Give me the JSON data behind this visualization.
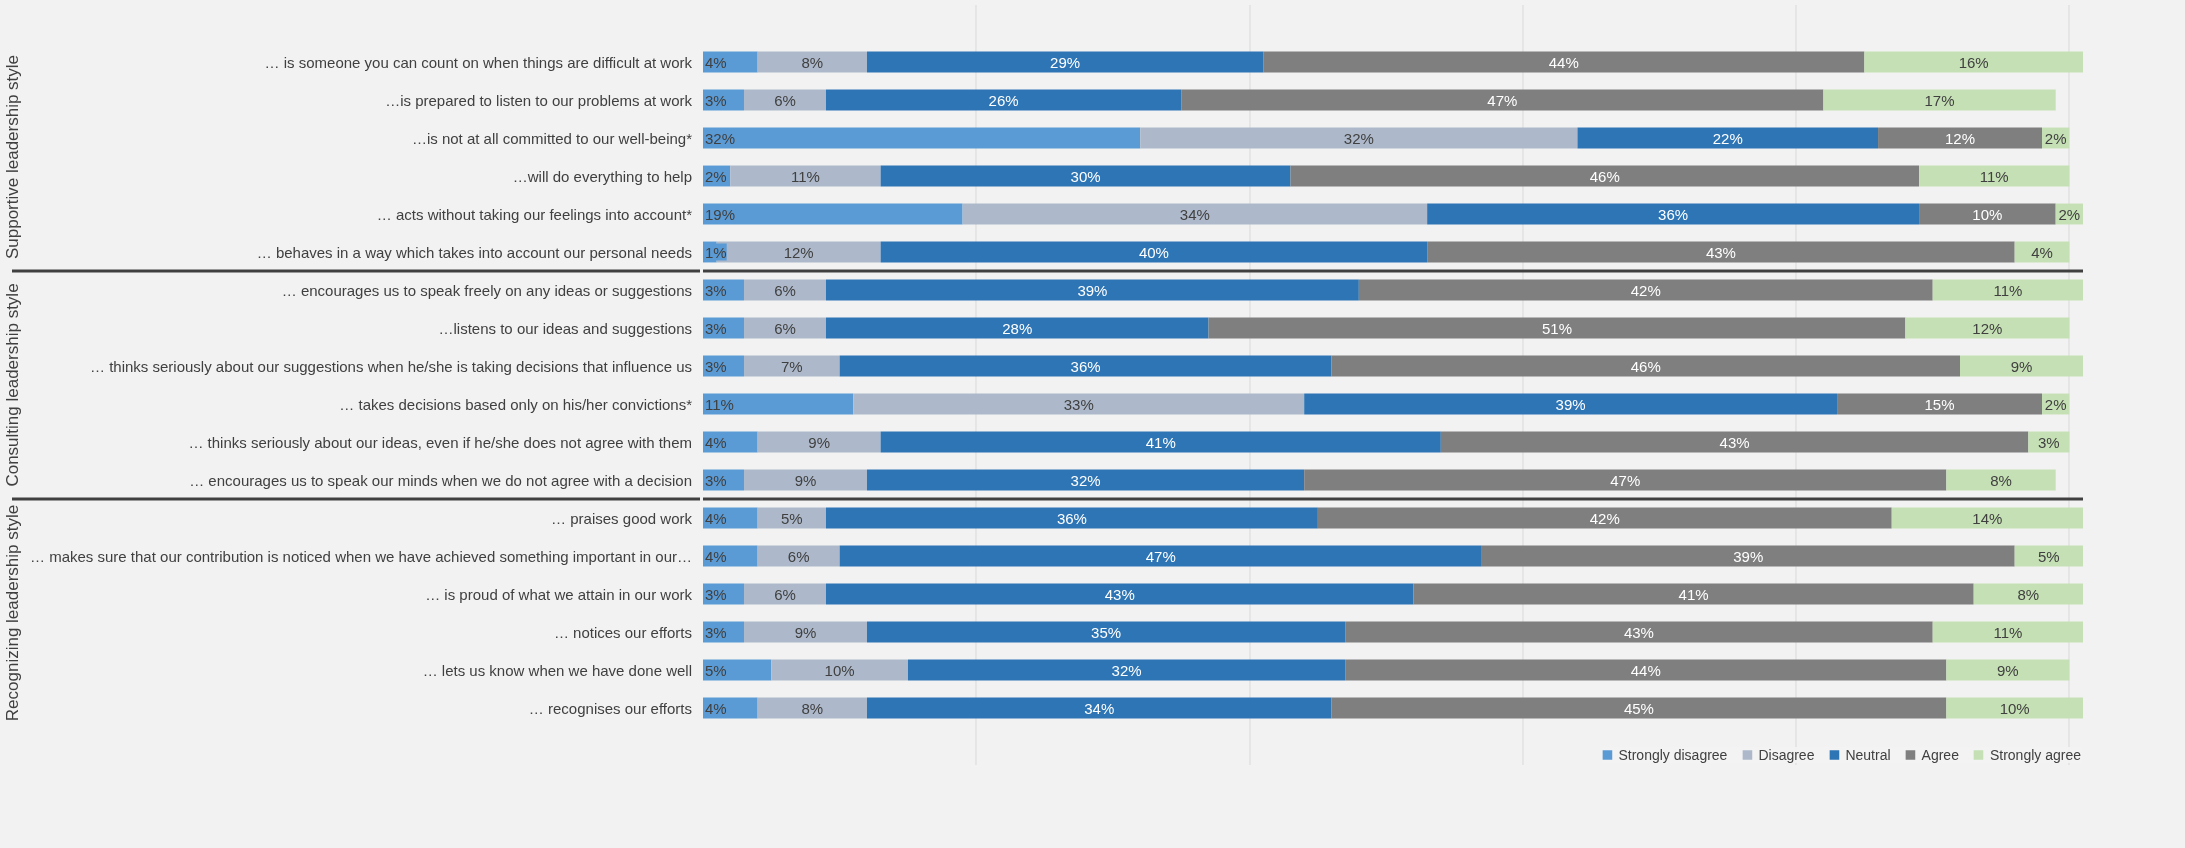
{
  "chart_data": {
    "type": "bar",
    "orientation": "horizontal",
    "stacked": true,
    "grid": "x",
    "legend": "bottom",
    "tick_labels": "y",
    "categories": [
      "… is someone you can count on when things are difficult at work",
      "…is prepared to listen to our problems at work",
      "…is not at all committed to our well-being*",
      "…will do everything to help",
      "… acts without taking our feelings into account*",
      "… behaves in a way which takes into account our personal needs",
      "… encourages us to speak freely on any ideas or suggestions",
      "…listens to our ideas and suggestions",
      "… thinks seriously about our suggestions when he/she is taking decisions that influence us",
      "… takes decisions based only on his/her convictions*",
      "… thinks seriously about our ideas, even if he/she does not agree with them",
      "… encourages us to speak our minds when we do not agree with a decision",
      "… praises good work",
      "… makes sure that our contribution is noticed when we have achieved something important in our…",
      "… is proud of what we attain in our work",
      "… notices our efforts",
      "… lets us know when we have done well",
      "… recognises our efforts"
    ],
    "annotations": [
      "Supportive leadership style",
      "Consulting leadership style",
      "Recognizing leadership style"
    ],
    "series": [
      {
        "name": "Strongly disagree",
        "color": "#5b9bd5",
        "values": [
          4,
          3,
          32,
          2,
          19,
          1,
          3,
          3,
          3,
          11,
          4,
          3,
          4,
          4,
          3,
          3,
          5,
          4
        ],
        "value_labels": [
          "4%",
          "3%",
          "32%",
          "2%",
          "19%",
          "1%",
          "3%",
          "3%",
          "3%",
          "11%",
          "4%",
          "3%",
          "4%",
          "4%",
          "3%",
          "3%",
          "5%",
          "4%"
        ]
      },
      {
        "name": "Disagree",
        "color": "#adb9ca",
        "values": [
          8,
          6,
          32,
          11,
          34,
          12,
          6,
          6,
          7,
          33,
          9,
          9,
          5,
          6,
          6,
          9,
          10,
          8
        ],
        "value_labels": [
          "8%",
          "6%",
          "32%",
          "11%",
          "34%",
          "12%",
          "6%",
          "6%",
          "7%",
          "33%",
          "9%",
          "9%",
          "5%",
          "6%",
          "6%",
          "9%",
          "10%",
          "8%"
        ]
      },
      {
        "name": "Neutral",
        "color": "#2e75b6",
        "values": [
          29,
          26,
          22,
          30,
          36,
          40,
          39,
          28,
          36,
          39,
          41,
          32,
          36,
          47,
          43,
          35,
          32,
          34
        ],
        "value_labels": [
          "29%",
          "26%",
          "22%",
          "30%",
          "36%",
          "40%",
          "39%",
          "28%",
          "36%",
          "39%",
          "41%",
          "32%",
          "36%",
          "47%",
          "43%",
          "35%",
          "32%",
          "34%"
        ]
      },
      {
        "name": "Agree",
        "color": "#7f7f7f",
        "values": [
          44,
          47,
          12,
          46,
          10,
          43,
          42,
          51,
          46,
          15,
          43,
          47,
          42,
          39,
          41,
          43,
          44,
          45
        ],
        "value_labels": [
          "44%",
          "47%",
          "12%",
          "46%",
          "10%",
          "43%",
          "42%",
          "51%",
          "46%",
          "15%",
          "43%",
          "47%",
          "42%",
          "39%",
          "41%",
          "43%",
          "44%",
          "45%"
        ]
      },
      {
        "name": "Strongly agree",
        "color": "#c5e0b4",
        "values": [
          16,
          17,
          2,
          11,
          2,
          4,
          11,
          12,
          9,
          2,
          3,
          8,
          14,
          5,
          8,
          11,
          9,
          10
        ],
        "value_labels": [
          "16%",
          "17%",
          "2%",
          "11%",
          "2%",
          "4%",
          "11%",
          "12%",
          "9%",
          "2%",
          "3%",
          "8%",
          "14%",
          "5%",
          "8%",
          "11%",
          "9%",
          "10%"
        ]
      }
    ]
  }
}
